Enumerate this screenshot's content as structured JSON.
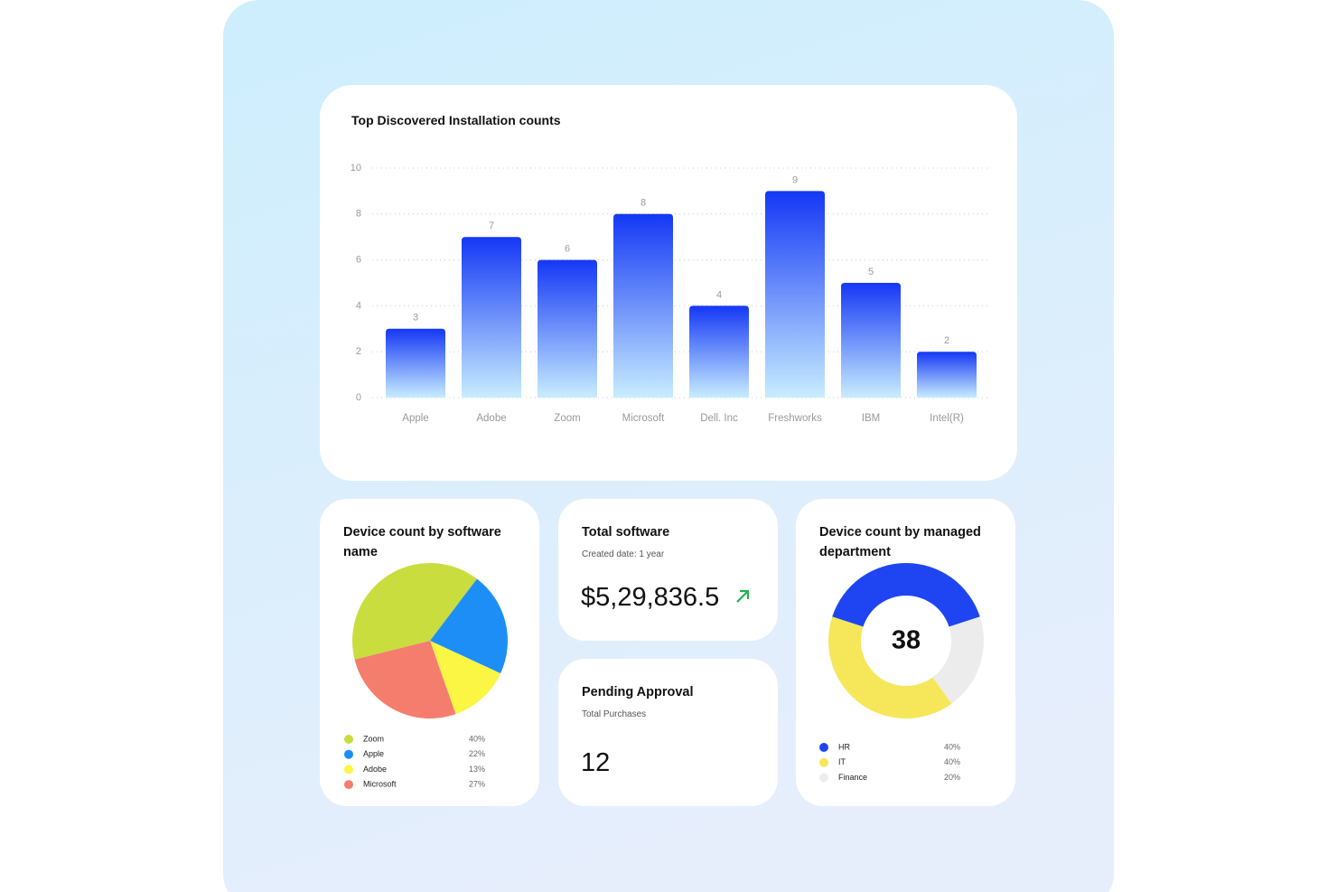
{
  "chart_data": [
    {
      "type": "bar",
      "title": "Top Discovered Installation counts",
      "categories": [
        "Apple",
        "Adobe",
        "Zoom",
        "Microsoft",
        "Dell. Inc",
        "Freshworks",
        "IBM",
        "Intel(R)"
      ],
      "values": [
        3,
        7,
        6,
        8,
        4,
        9,
        5,
        2
      ],
      "color": "#1437f5",
      "ylim": [
        0,
        10
      ],
      "yticks": [
        0,
        2,
        4,
        6,
        8,
        10
      ],
      "grid": true
    },
    {
      "type": "pie",
      "title": "Device count by software name",
      "categories": [
        "Zoom",
        "Apple",
        "Adobe",
        "Microsoft"
      ],
      "values": [
        40,
        22,
        13,
        27
      ],
      "value_labels": [
        "40%",
        "22%",
        "13%",
        "27%"
      ],
      "colors": [
        "#cadd3e",
        "#1e8ef7",
        "#fbf544",
        "#f47d6d"
      ]
    },
    {
      "type": "donut",
      "title": "Device count by managed department",
      "total": 38,
      "categories": [
        "HR",
        "IT",
        "Finance"
      ],
      "values": [
        40,
        40,
        20
      ],
      "value_labels": [
        "40%",
        "40%",
        "20%"
      ],
      "colors": [
        "#1f45f2",
        "#f6e75a",
        "#ececec"
      ]
    }
  ],
  "cards": [
    {
      "title": "Total software",
      "subtitle": "Created date: 1 year",
      "value": "$5,29,836.5"
    },
    {
      "title": "Pending Approval",
      "subtitle": "Total Purchases",
      "value": 12
    }
  ]
}
